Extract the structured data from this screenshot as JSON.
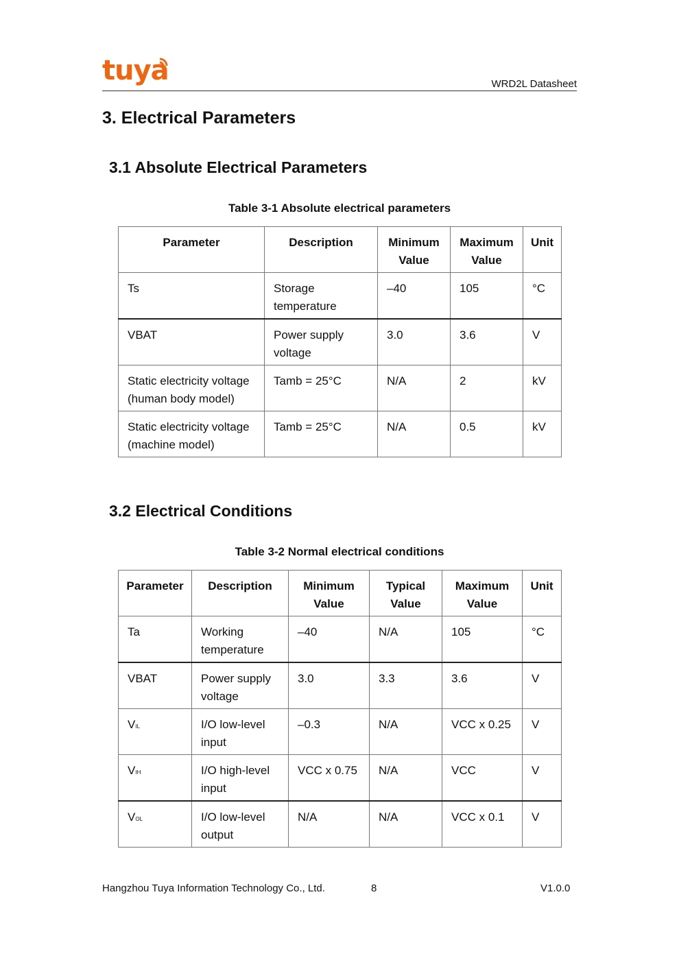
{
  "header": {
    "logo_text": "tuya",
    "doc_title": "WRD2L Datasheet"
  },
  "section_title": "3. Electrical Parameters",
  "s31": {
    "title": "3.1 Absolute Electrical Parameters",
    "caption": "Table 3-1 Absolute electrical parameters",
    "headers": [
      "Parameter",
      "Description",
      "Minimum Value",
      "Maximum Value",
      "Unit"
    ],
    "rows": [
      [
        "Ts",
        "Storage temperature",
        "–40",
        "105",
        "°C"
      ],
      [
        "VBAT",
        "Power supply voltage",
        "3.0",
        "3.6",
        "V"
      ],
      [
        "Static electricity voltage (human body model)",
        "Tamb = 25°C",
        "N/A",
        "2",
        "kV"
      ],
      [
        "Static electricity voltage (machine model)",
        "Tamb = 25°C",
        "N/A",
        "0.5",
        "kV"
      ]
    ]
  },
  "s32": {
    "title": "3.2 Electrical Conditions",
    "caption": "Table 3-2 Normal electrical conditions",
    "headers": [
      "Parameter",
      "Description",
      "Minimum Value",
      "Typical Value",
      "Maximum Value",
      "Unit"
    ],
    "rows": [
      {
        "param": "Ta",
        "sub": "",
        "cells": [
          "Working temperature",
          "–40",
          "N/A",
          "105",
          "°C"
        ]
      },
      {
        "param": "VBAT",
        "sub": "",
        "cells": [
          "Power supply voltage",
          "3.0",
          "3.3",
          "3.6",
          "V"
        ]
      },
      {
        "param": "V",
        "sub": "IL",
        "cells": [
          "I/O low-level input",
          "–0.3",
          "N/A",
          "VCC x 0.25",
          "V"
        ]
      },
      {
        "param": "V",
        "sub": "IH",
        "cells": [
          "I/O high-level input",
          "VCC x 0.75",
          "N/A",
          "VCC",
          "V"
        ]
      },
      {
        "param": "V",
        "sub": "OL",
        "cells": [
          "I/O low-level output",
          "N/A",
          "N/A",
          "VCC x 0.1",
          "V"
        ]
      }
    ]
  },
  "footer": {
    "company": "Hangzhou Tuya Information Technology Co., Ltd.",
    "page": "8",
    "version": "V1.0.0"
  }
}
